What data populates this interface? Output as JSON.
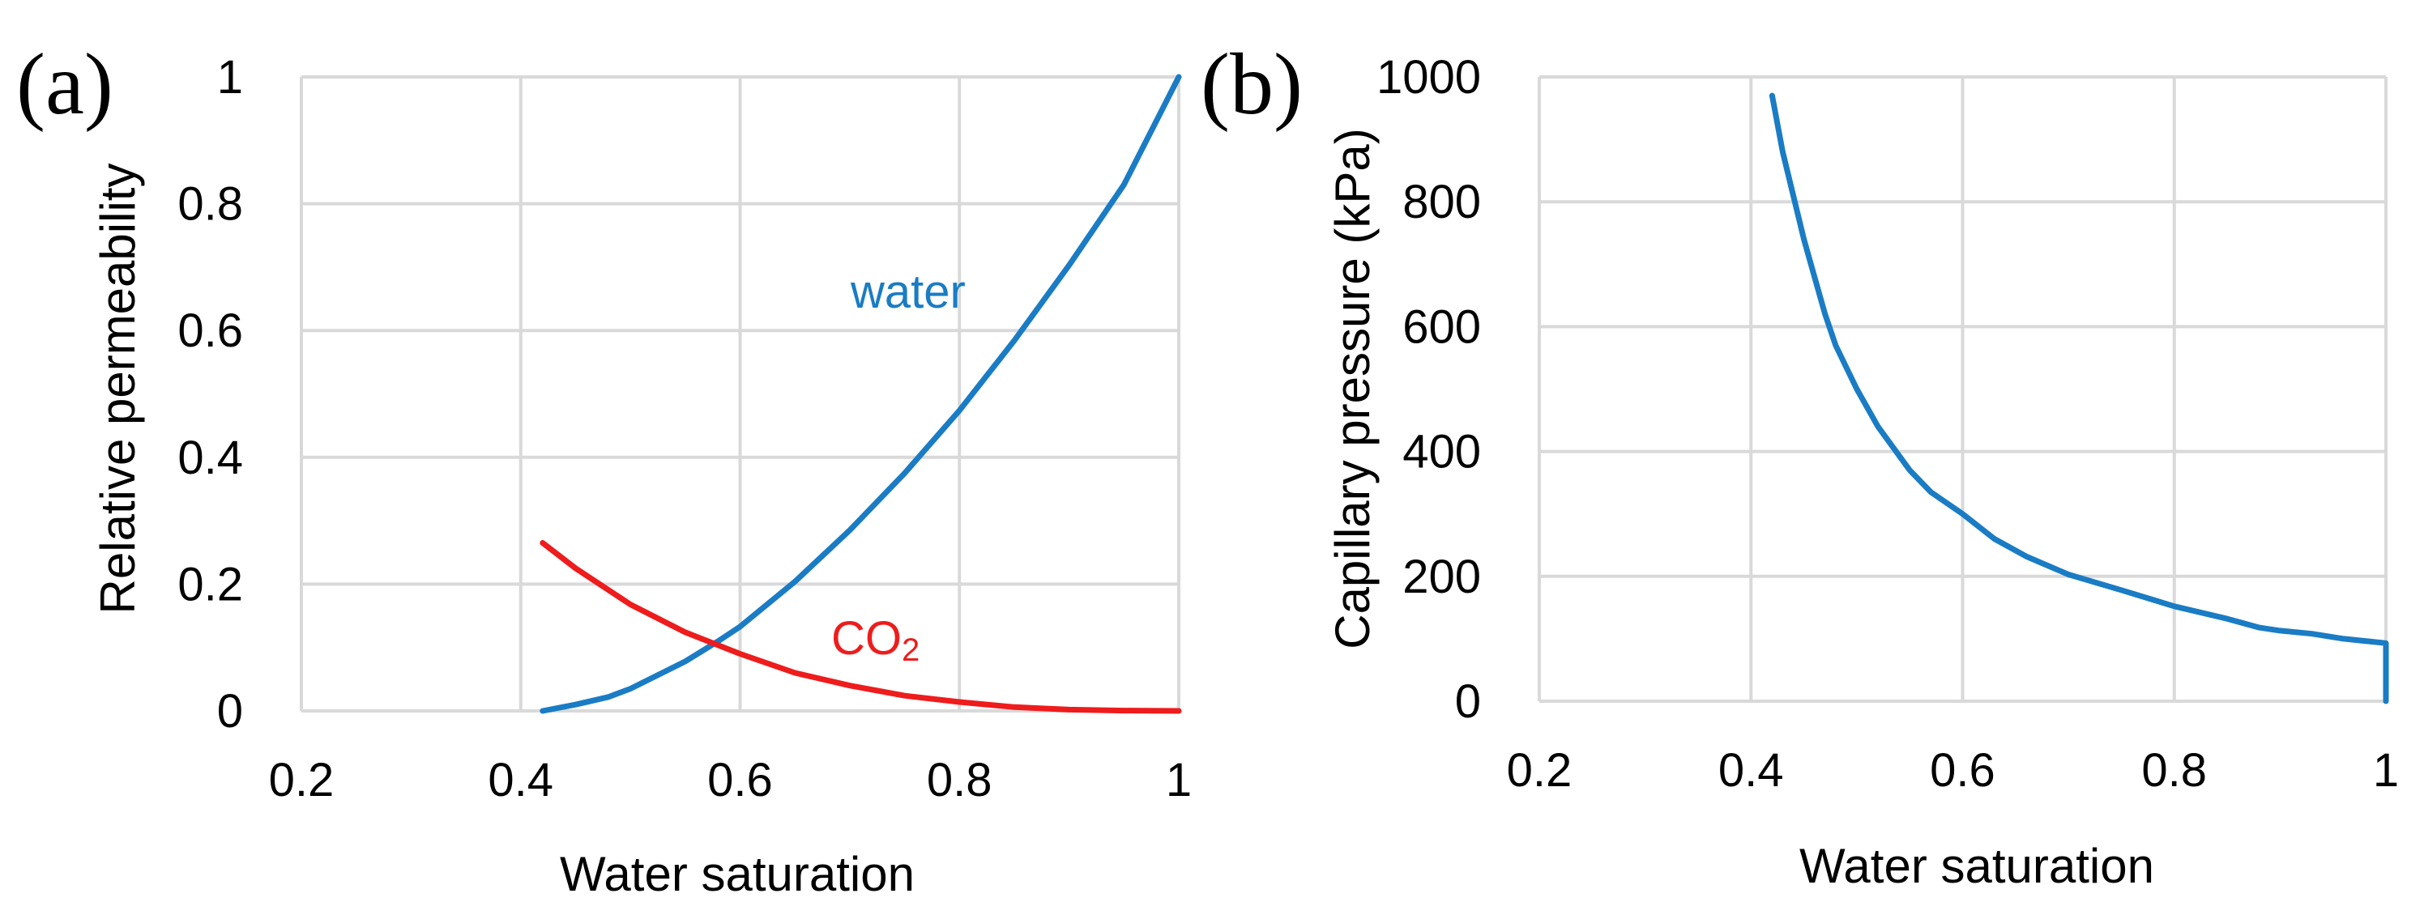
{
  "chart_data": [
    {
      "type": "line",
      "panel_label": "(a)",
      "xlabel": "Water saturation",
      "ylabel": "Relative permeability",
      "xlim": [
        0.2,
        1
      ],
      "ylim": [
        0,
        1
      ],
      "xticks": [
        "0.2",
        "0.4",
        "0.6",
        "0.8",
        "1"
      ],
      "yticks": [
        "0",
        "0.2",
        "0.4",
        "0.6",
        "0.8",
        "1"
      ],
      "grid": true,
      "series": [
        {
          "name": "water",
          "color": "#1a7cc4",
          "x": [
            0.42,
            0.45,
            0.48,
            0.5,
            0.55,
            0.58,
            0.6,
            0.65,
            0.7,
            0.75,
            0.8,
            0.85,
            0.9,
            0.95,
            1.0
          ],
          "y": [
            0.0,
            0.01,
            0.022,
            0.035,
            0.078,
            0.11,
            0.133,
            0.204,
            0.285,
            0.375,
            0.474,
            0.584,
            0.703,
            0.83,
            1.0
          ]
        },
        {
          "name": "CO2",
          "label_main": "CO",
          "label_sub": "2",
          "color": "#ee1c1c",
          "x": [
            0.42,
            0.45,
            0.5,
            0.55,
            0.6,
            0.65,
            0.7,
            0.75,
            0.8,
            0.85,
            0.9,
            0.95,
            1.0
          ],
          "y": [
            0.265,
            0.225,
            0.168,
            0.124,
            0.09,
            0.06,
            0.04,
            0.024,
            0.014,
            0.006,
            0.002,
            0.0005,
            0.0
          ]
        }
      ]
    },
    {
      "type": "line",
      "panel_label": "(b)",
      "xlabel": "Water saturation",
      "ylabel": "Capillary pressure (kPa)",
      "xlim": [
        0.2,
        1
      ],
      "ylim": [
        0,
        1000
      ],
      "xticks": [
        "0.2",
        "0.4",
        "0.6",
        "0.8",
        "1"
      ],
      "yticks": [
        "0",
        "200",
        "400",
        "600",
        "800",
        "1000"
      ],
      "grid": true,
      "series": [
        {
          "name": "capillary pressure",
          "color": "#1a7cc4",
          "x": [
            0.42,
            0.43,
            0.44,
            0.45,
            0.46,
            0.47,
            0.48,
            0.5,
            0.52,
            0.55,
            0.57,
            0.6,
            0.63,
            0.66,
            0.7,
            0.75,
            0.8,
            0.85,
            0.88,
            0.9,
            0.93,
            0.96,
            1.0,
            1.0
          ],
          "y": [
            970,
            880,
            810,
            740,
            680,
            620,
            570,
            500,
            440,
            370,
            335,
            300,
            260,
            232,
            203,
            178,
            152,
            132,
            118,
            113,
            108,
            100,
            93,
            0
          ]
        }
      ]
    }
  ]
}
